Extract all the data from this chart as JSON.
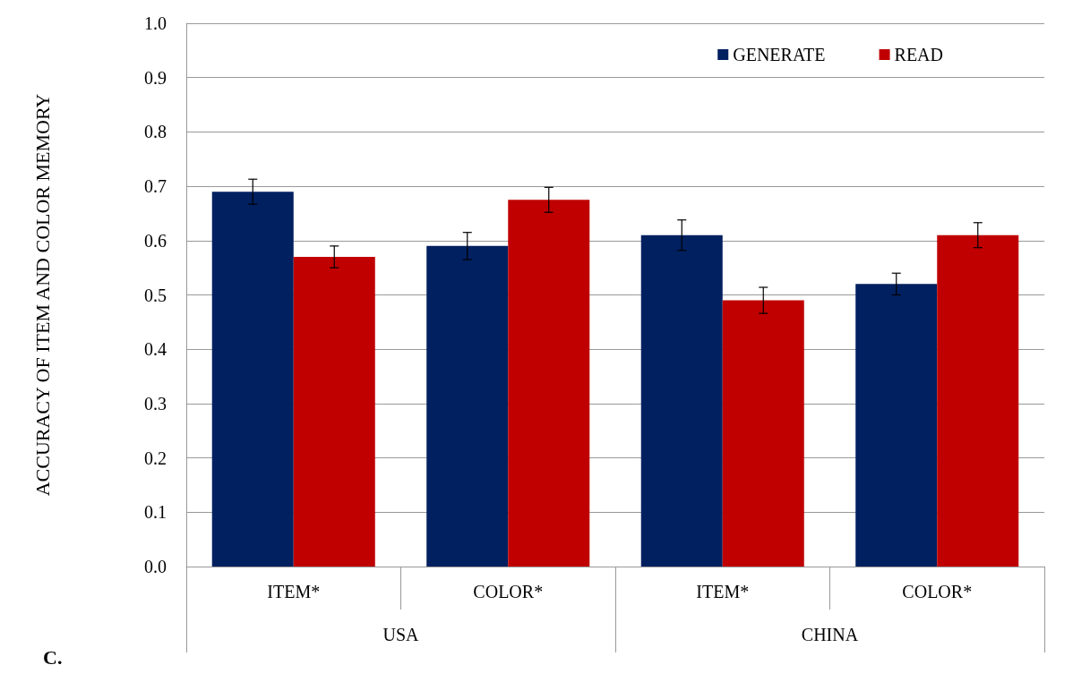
{
  "chart_data": {
    "type": "bar",
    "ylabel": "ACCURACY OF ITEM AND COLOR MEMORY",
    "categories": [
      "ITEM*",
      "COLOR*",
      "ITEM*",
      "COLOR*"
    ],
    "series": [
      {
        "name": "GENERATE",
        "color": "#002060",
        "values": [
          0.69,
          0.59,
          0.61,
          0.52
        ],
        "errors": [
          0.023,
          0.025,
          0.028,
          0.02
        ]
      },
      {
        "name": "READ",
        "color": "#c00000",
        "values": [
          0.57,
          0.675,
          0.49,
          0.61
        ],
        "errors": [
          0.02,
          0.023,
          0.024,
          0.023
        ]
      }
    ],
    "ylim": [
      0,
      1
    ],
    "yticks": [
      {
        "value": 0,
        "label": "0.0"
      },
      0.1,
      0.2,
      0.3,
      0.4,
      0.5,
      0.6,
      0.7,
      0.8,
      0.9,
      {
        "value": 1,
        "label": "1.0"
      }
    ],
    "grid": "y",
    "legend": "top right",
    "annotations": [
      "USA",
      "CHINA",
      "C."
    ]
  }
}
